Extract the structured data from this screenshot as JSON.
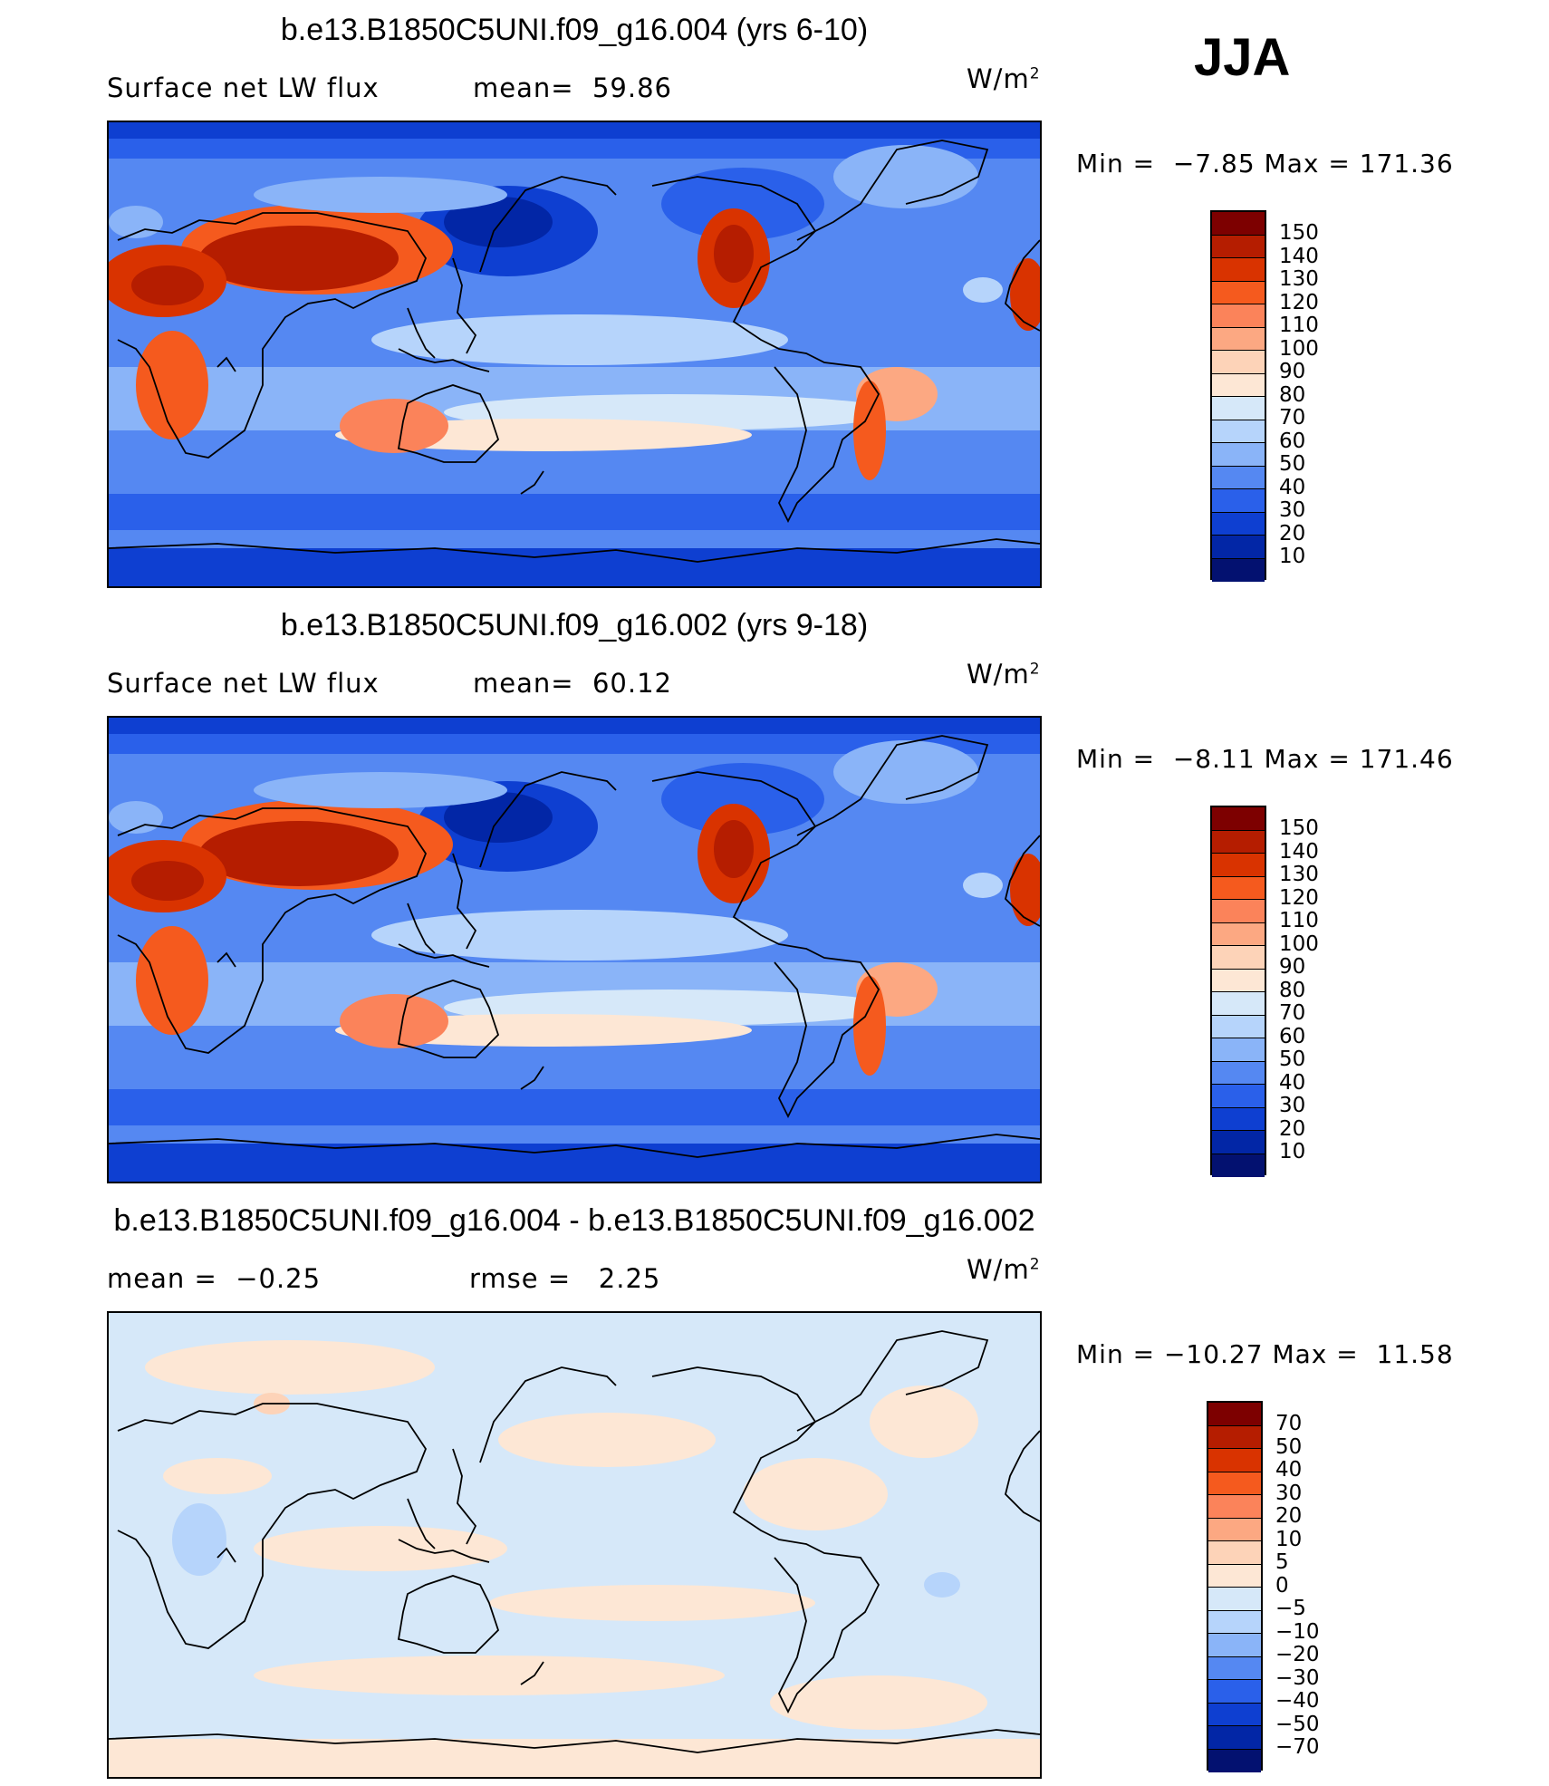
{
  "season": "JJA",
  "panels": [
    {
      "title": "b.e13.B1850C5UNI.f09_g16.004 (yrs 6-10)",
      "left_label": "Surface net LW flux",
      "stat_label": "mean=  59.86",
      "units": "W/m",
      "units_exp": "2",
      "minmax": "Min =  −7.85 Max = 171.36",
      "colorbar_ticks": [
        "150",
        "140",
        "130",
        "120",
        "110",
        "100",
        "90",
        "80",
        "70",
        "60",
        "50",
        "40",
        "30",
        "20",
        "10"
      ],
      "colors": [
        "#7d0000",
        "#b51d00",
        "#d93300",
        "#f55a1e",
        "#fb835a",
        "#fca882",
        "#fdd3b8",
        "#fde7d5",
        "#d6e8f9",
        "#b6d4fb",
        "#8ab4f8",
        "#5588f2",
        "#2a60ea",
        "#0e3fd1",
        "#0226a6",
        "#031170"
      ]
    },
    {
      "title": "b.e13.B1850C5UNI.f09_g16.002 (yrs 9-18)",
      "left_label": "Surface net LW flux",
      "stat_label": "mean=  60.12",
      "units": "W/m",
      "units_exp": "2",
      "minmax": "Min =  −8.11 Max = 171.46",
      "colorbar_ticks": [
        "150",
        "140",
        "130",
        "120",
        "110",
        "100",
        "90",
        "80",
        "70",
        "60",
        "50",
        "40",
        "30",
        "20",
        "10"
      ],
      "colors": [
        "#7d0000",
        "#b51d00",
        "#d93300",
        "#f55a1e",
        "#fb835a",
        "#fca882",
        "#fdd3b8",
        "#fde7d5",
        "#d6e8f9",
        "#b6d4fb",
        "#8ab4f8",
        "#5588f2",
        "#2a60ea",
        "#0e3fd1",
        "#0226a6",
        "#031170"
      ]
    },
    {
      "title": "b.e13.B1850C5UNI.f09_g16.004 - b.e13.B1850C5UNI.f09_g16.002",
      "left_label": "mean =  −0.25",
      "stat_label": "rmse =   2.25",
      "units": "W/m",
      "units_exp": "2",
      "minmax": "Min = −10.27 Max =  11.58",
      "colorbar_ticks": [
        "70",
        "50",
        "40",
        "30",
        "20",
        "10",
        "5",
        "0",
        "−5",
        "−10",
        "−20",
        "−30",
        "−40",
        "−50",
        "−70"
      ],
      "colors": [
        "#7d0000",
        "#b51d00",
        "#d93300",
        "#f55a1e",
        "#fb835a",
        "#fca882",
        "#fdd3b8",
        "#fde7d5",
        "#d6e8f9",
        "#b6d4fb",
        "#8ab4f8",
        "#5588f2",
        "#2a60ea",
        "#0e3fd1",
        "#0226a6",
        "#031170"
      ]
    }
  ]
}
